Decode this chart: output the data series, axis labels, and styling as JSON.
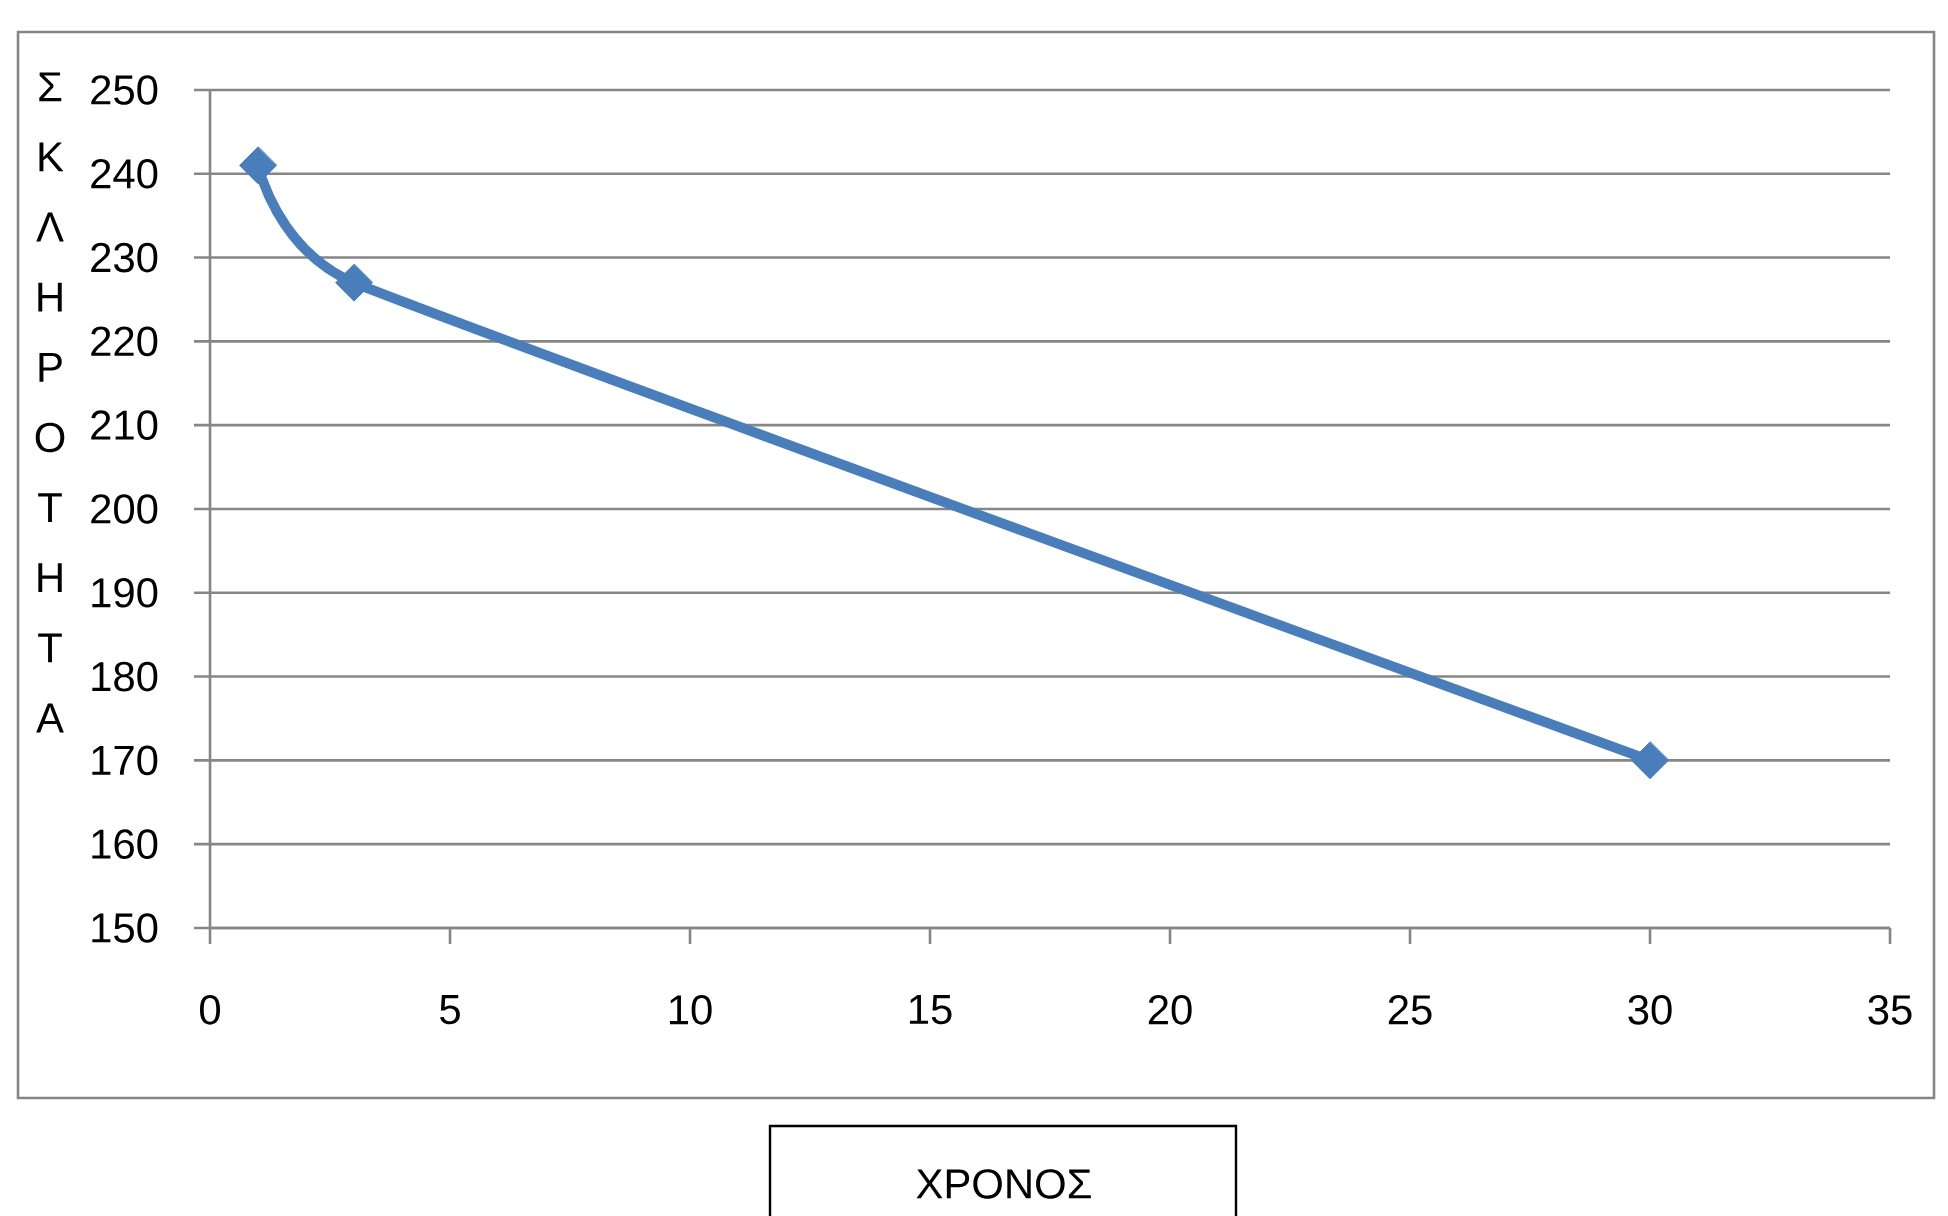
{
  "chart_data": {
    "type": "line",
    "xlabel": "ΧΡΟΝΟΣ",
    "ylabel": "ΣΚΛΗΡΟΤΗΤΑ",
    "x": [
      1,
      3,
      30
    ],
    "values": [
      241,
      227,
      170
    ],
    "color": "#4a7ebb",
    "xlim": [
      0,
      35
    ],
    "xticks": [
      0,
      5,
      10,
      15,
      20,
      25,
      30,
      35
    ],
    "ylim": [
      150,
      250
    ],
    "yticks": [
      150,
      160,
      170,
      180,
      190,
      200,
      210,
      220,
      230,
      240,
      250
    ],
    "grid": "y",
    "marker": "diamond",
    "line_style": "solid"
  }
}
